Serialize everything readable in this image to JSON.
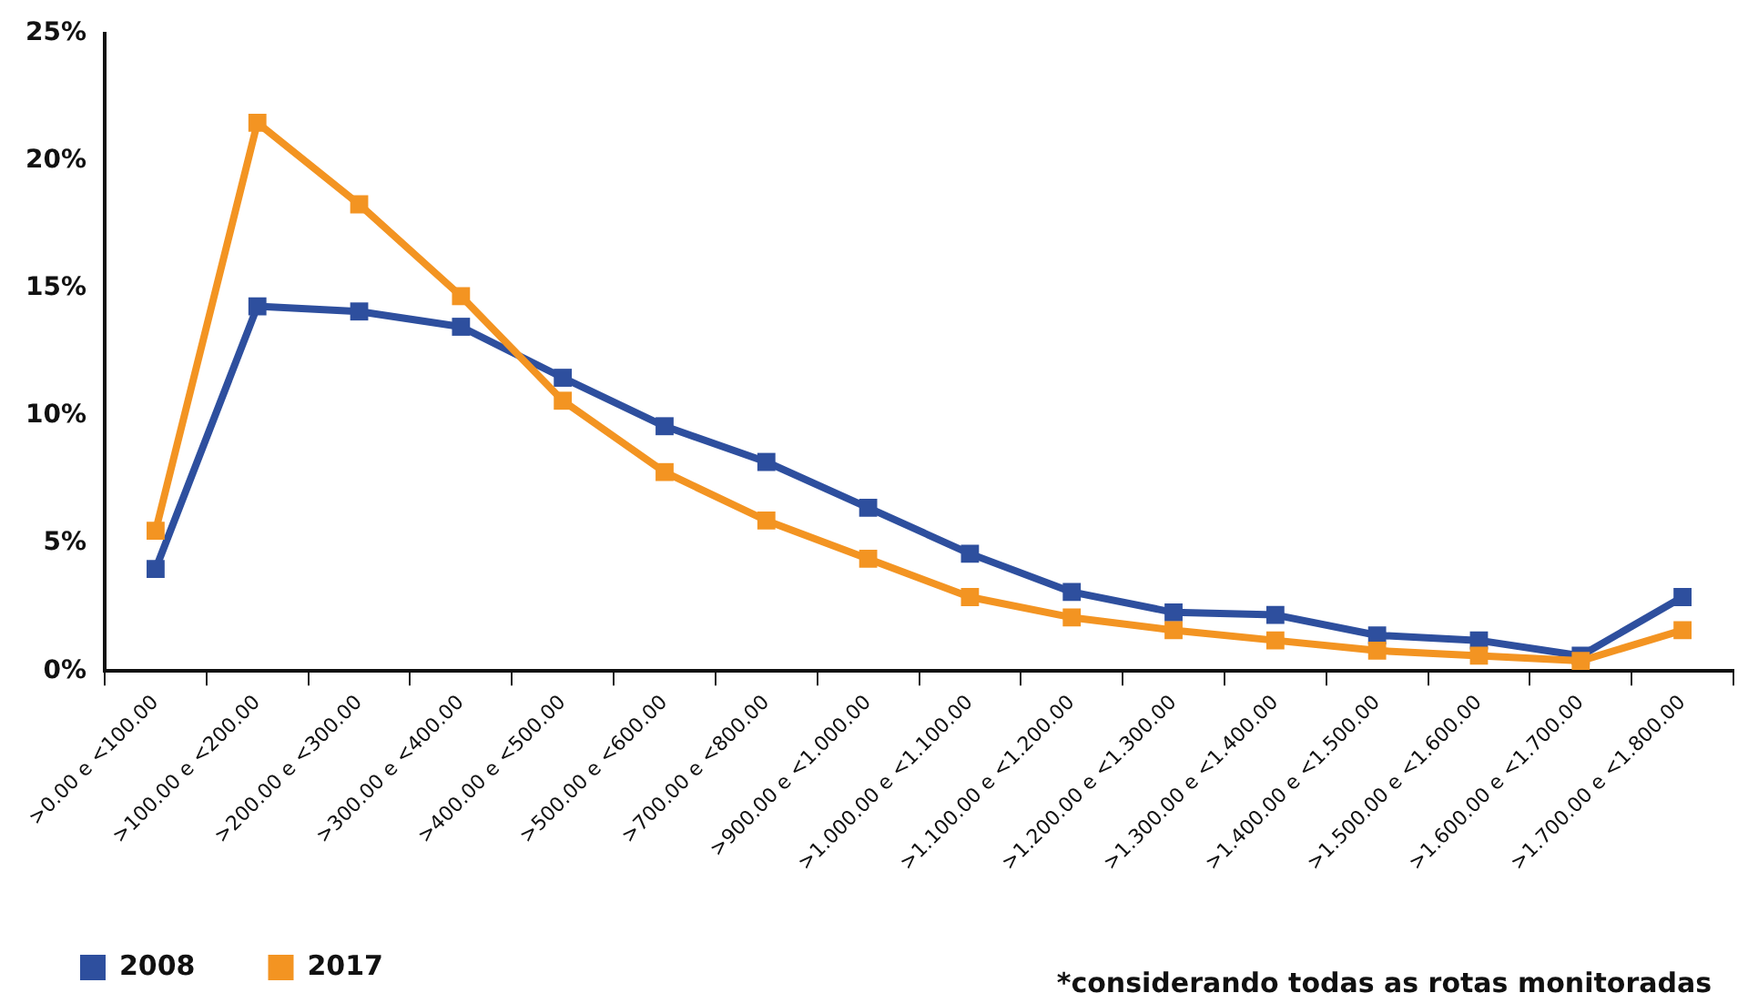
{
  "chart_data": {
    "type": "line",
    "categories": [
      ">0.00 e <100.00",
      ">100.00 e <200.00",
      ">200.00 e <300.00",
      ">300.00 e <400.00",
      ">400.00 e <500.00",
      ">500.00 e <600.00",
      ">700.00 e <800.00",
      ">900.00 e <1.000.00",
      ">1.000.00 e <1.100.00",
      ">1.100.00 e <1.200.00",
      ">1.200.00 e <1.300.00",
      ">1.300.00 e <1.400.00",
      ">1.400.00 e <1.500.00",
      ">1.500.00 e <1.600.00",
      ">1.600.00 e <1.700.00",
      ">1.700.00 e <1.800.00"
    ],
    "series": [
      {
        "name": "2008",
        "color": "#2e4f9e",
        "values": [
          4.0,
          14.3,
          14.1,
          13.5,
          11.5,
          9.6,
          8.2,
          6.4,
          4.6,
          3.1,
          2.3,
          2.2,
          1.4,
          1.2,
          0.6,
          2.9
        ]
      },
      {
        "name": "2017",
        "color": "#f39422",
        "values": [
          5.5,
          21.5,
          18.3,
          14.7,
          10.6,
          7.8,
          5.9,
          4.4,
          2.9,
          2.1,
          1.6,
          1.2,
          0.8,
          0.6,
          0.4,
          1.6
        ]
      }
    ],
    "ylim": [
      0,
      25
    ],
    "yticks": [
      {
        "value": 0,
        "label": "0%"
      },
      {
        "value": 5,
        "label": "5%"
      },
      {
        "value": 10,
        "label": "10%"
      },
      {
        "value": 15,
        "label": "15%"
      },
      {
        "value": 20,
        "label": "20%"
      },
      {
        "value": 25,
        "label": "25%"
      }
    ],
    "grid": false,
    "legend": "bottom left",
    "marker": "square",
    "line_style": "solid",
    "annotations": [
      "*considerando todas as rotas monitoradas"
    ]
  }
}
